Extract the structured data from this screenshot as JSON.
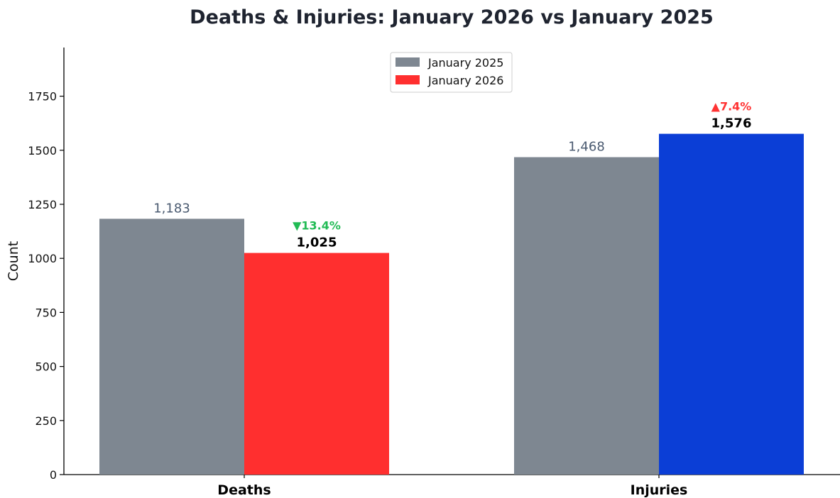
{
  "chart_data": {
    "type": "bar",
    "title": "Deaths & Injuries: January 2026 vs January 2025",
    "xlabel": "",
    "ylabel": "Count",
    "ylim": [
      0,
      1975
    ],
    "yticks": [
      0,
      250,
      500,
      750,
      1000,
      1250,
      1500,
      1750
    ],
    "categories": [
      "Deaths",
      "Injuries"
    ],
    "series": [
      {
        "name": "January 2025",
        "values": [
          1183,
          1468
        ],
        "labels": [
          "1,183",
          "1,468"
        ],
        "colors": [
          "#7e8791",
          "#7e8791"
        ]
      },
      {
        "name": "January 2026",
        "values": [
          1025,
          1576
        ],
        "labels": [
          "1,025",
          "1,576"
        ],
        "colors": [
          "#ff2f2f",
          "#0b3ed6"
        ]
      }
    ],
    "changes": [
      {
        "text": "▼13.4%",
        "color": "#22bb55"
      },
      {
        "text": "▲7.4%",
        "color": "#ff3333"
      }
    ],
    "legend": {
      "placement": "top-center",
      "entries": [
        {
          "label": "January 2025",
          "color": "#7e8791"
        },
        {
          "label": "January 2026",
          "color": "#ff2f2f"
        }
      ]
    },
    "grid": false
  }
}
